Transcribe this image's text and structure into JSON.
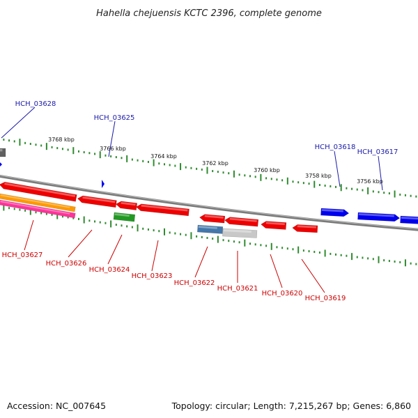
{
  "title": "Hahella chejuensis KCTC 2396, complete genome",
  "footer": {
    "accession": "Accession: NC_007645",
    "stats": "Topology: circular; Length: 7,215,267 bp; Genes: 6,860"
  },
  "colors": {
    "backbone": "#808080",
    "tick": "#2e8b2e",
    "forward_gene": "#0000ee",
    "reverse_gene": "#ee0000",
    "label_forward": "#1a1aaa",
    "label_reverse": "#cc0000",
    "orange_track": "#ff9900",
    "magenta_track": "#ff3399",
    "green_gene": "#229922",
    "steel_gene": "#4477aa",
    "light_gray_gene": "#c8c8c8"
  },
  "kbp_labels": [
    "3768 kbp",
    "3766 kbp",
    "3764 kbp",
    "3762 kbp",
    "3760 kbp",
    "3758 kbp",
    "3756 kbp"
  ],
  "genes_top": [
    {
      "label": "HCH_03628",
      "strand": "+"
    },
    {
      "label": "HCH_03625",
      "strand": "+"
    },
    {
      "label": "HCH_03618",
      "strand": "+"
    },
    {
      "label": "HCH_03617",
      "strand": "+"
    }
  ],
  "genes_bottom": [
    {
      "label": "HCH_03627",
      "strand": "-"
    },
    {
      "label": "HCH_03626",
      "strand": "-"
    },
    {
      "label": "HCH_03624",
      "strand": "-"
    },
    {
      "label": "HCH_03623",
      "strand": "-"
    },
    {
      "label": "HCH_03622",
      "strand": "-"
    },
    {
      "label": "HCH_03621",
      "strand": "-"
    },
    {
      "label": "HCH_03620",
      "strand": "-"
    },
    {
      "label": "HCH_03619",
      "strand": "-"
    }
  ]
}
